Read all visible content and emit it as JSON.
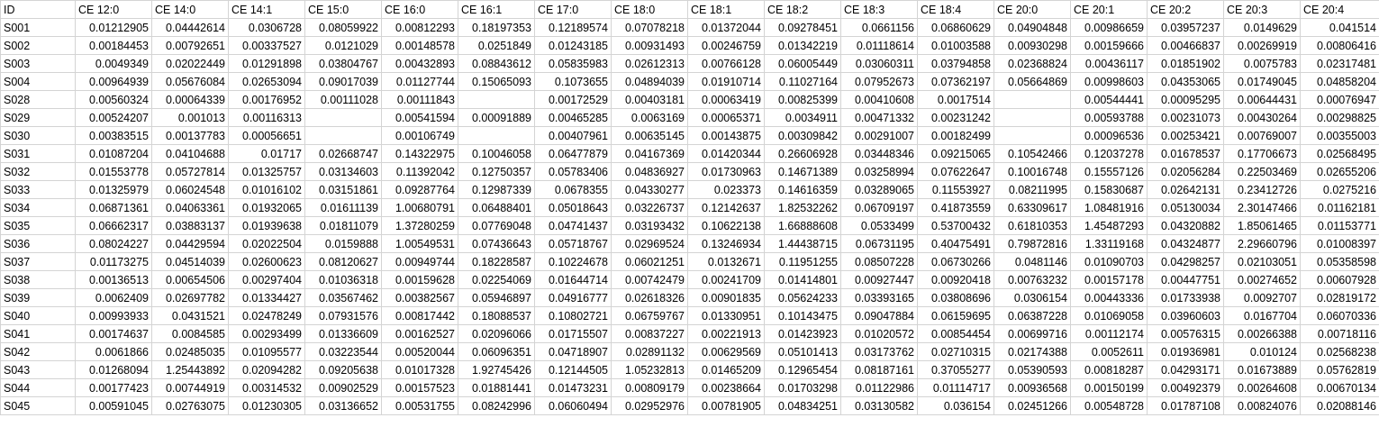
{
  "sheet": {
    "columns": [
      "ID",
      "CE 12:0",
      "CE 14:0",
      "CE 14:1",
      "CE 15:0",
      "CE 16:0",
      "CE 16:1",
      "CE 17:0",
      "CE 18:0",
      "CE 18:1",
      "CE 18:2",
      "CE 18:3",
      "CE 18:4",
      "CE 20:0",
      "CE 20:1",
      "CE 20:2",
      "CE 20:3",
      "CE 20:4"
    ],
    "rows": [
      [
        "S001",
        "0.01212905",
        "0.04442614",
        "0.0306728",
        "0.08059922",
        "0.00812293",
        "0.18197353",
        "0.12189574",
        "0.07078218",
        "0.01372044",
        "0.09278451",
        "0.0661156",
        "0.06860629",
        "0.04904848",
        "0.00986659",
        "0.03957237",
        "0.0149629",
        "0.041514"
      ],
      [
        "S002",
        "0.00184453",
        "0.00792651",
        "0.00337527",
        "0.0121029",
        "0.00148578",
        "0.0251849",
        "0.01243185",
        "0.00931493",
        "0.00246759",
        "0.01342219",
        "0.01118614",
        "0.01003588",
        "0.00930298",
        "0.00159666",
        "0.00466837",
        "0.00269919",
        "0.00806416"
      ],
      [
        "S003",
        "0.0049349",
        "0.02022449",
        "0.01291898",
        "0.03804767",
        "0.00432893",
        "0.08843612",
        "0.05835983",
        "0.02612313",
        "0.00766128",
        "0.06005449",
        "0.03060311",
        "0.03794858",
        "0.02368824",
        "0.00436117",
        "0.01851902",
        "0.0075783",
        "0.02317481"
      ],
      [
        "S004",
        "0.00964939",
        "0.05676084",
        "0.02653094",
        "0.09017039",
        "0.01127744",
        "0.15065093",
        "0.1073655",
        "0.04894039",
        "0.01910714",
        "0.11027164",
        "0.07952673",
        "0.07362197",
        "0.05664869",
        "0.00998603",
        "0.04353065",
        "0.01749045",
        "0.04858204"
      ],
      [
        "S028",
        "0.00560324",
        "0.00064339",
        "0.00176952",
        "0.00111028",
        "0.00111843",
        "",
        "0.00172529",
        "0.00403181",
        "0.00063419",
        "0.00825399",
        "0.00410608",
        "0.0017514",
        "",
        "0.00544441",
        "0.00095295",
        "0.00644431",
        "0.00076947"
      ],
      [
        "S029",
        "0.00524207",
        "0.001013",
        "0.00116313",
        "",
        "0.00541594",
        "0.00091889",
        "0.00465285",
        "0.0063169",
        "0.00065371",
        "0.0034911",
        "0.00471332",
        "0.00231242",
        "",
        "0.00593788",
        "0.00231073",
        "0.00430264",
        "0.00298825"
      ],
      [
        "S030",
        "0.00383515",
        "0.00137783",
        "0.00056651",
        "",
        "0.00106749",
        "",
        "0.00407961",
        "0.00635145",
        "0.00143875",
        "0.00309842",
        "0.00291007",
        "0.00182499",
        "",
        "0.00096536",
        "0.00253421",
        "0.00769007",
        "0.00355003"
      ],
      [
        "S031",
        "0.01087204",
        "0.04104688",
        "0.01717",
        "0.02668747",
        "0.14322975",
        "0.10046058",
        "0.06477879",
        "0.04167369",
        "0.01420344",
        "0.26606928",
        "0.03448346",
        "0.09215065",
        "0.10542466",
        "0.12037278",
        "0.01678537",
        "0.17706673",
        "0.02568495"
      ],
      [
        "S032",
        "0.01553778",
        "0.05727814",
        "0.01325757",
        "0.03134603",
        "0.11392042",
        "0.12750357",
        "0.05783406",
        "0.04836927",
        "0.01730963",
        "0.14671389",
        "0.03258994",
        "0.07622647",
        "0.10016748",
        "0.15557126",
        "0.02056284",
        "0.22503469",
        "0.02655206"
      ],
      [
        "S033",
        "0.01325979",
        "0.06024548",
        "0.01016102",
        "0.03151861",
        "0.09287764",
        "0.12987339",
        "0.0678355",
        "0.04330277",
        "0.023373",
        "0.14616359",
        "0.03289065",
        "0.11553927",
        "0.08211995",
        "0.15830687",
        "0.02642131",
        "0.23412726",
        "0.0275216"
      ],
      [
        "S034",
        "0.06871361",
        "0.04063361",
        "0.01932065",
        "0.01611139",
        "1.00680791",
        "0.06488401",
        "0.05018643",
        "0.03226737",
        "0.12142637",
        "1.82532262",
        "0.06709197",
        "0.41873559",
        "0.63309617",
        "1.08481916",
        "0.05130034",
        "2.30147466",
        "0.01162181"
      ],
      [
        "S035",
        "0.06662317",
        "0.03883137",
        "0.01939638",
        "0.01811079",
        "1.37280259",
        "0.07769048",
        "0.04741437",
        "0.03193432",
        "0.10622138",
        "1.66888608",
        "0.0533499",
        "0.53700432",
        "0.61810353",
        "1.45487293",
        "0.04320882",
        "1.85061465",
        "0.01153771"
      ],
      [
        "S036",
        "0.08024227",
        "0.04429594",
        "0.02022504",
        "0.0159888",
        "1.00549531",
        "0.07436643",
        "0.05718767",
        "0.02969524",
        "0.13246934",
        "1.44438715",
        "0.06731195",
        "0.40475491",
        "0.79872816",
        "1.33119168",
        "0.04324877",
        "2.29660796",
        "0.01008397"
      ],
      [
        "S037",
        "0.01173275",
        "0.04514039",
        "0.02600623",
        "0.08120627",
        "0.00949744",
        "0.18228587",
        "0.10224678",
        "0.06021251",
        "0.0132671",
        "0.11951255",
        "0.08507228",
        "0.06730266",
        "0.0481146",
        "0.01090703",
        "0.04298257",
        "0.02103051",
        "0.05358598"
      ],
      [
        "S038",
        "0.00136513",
        "0.00654506",
        "0.00297404",
        "0.01036318",
        "0.00159628",
        "0.02254069",
        "0.01644714",
        "0.00742479",
        "0.00241709",
        "0.01414801",
        "0.00927447",
        "0.00920418",
        "0.00763232",
        "0.00157178",
        "0.00447751",
        "0.00274652",
        "0.00607928"
      ],
      [
        "S039",
        "0.0062409",
        "0.02697782",
        "0.01334427",
        "0.03567462",
        "0.00382567",
        "0.05946897",
        "0.04916777",
        "0.02618326",
        "0.00901835",
        "0.05624233",
        "0.03393165",
        "0.03808696",
        "0.0306154",
        "0.00443336",
        "0.01733938",
        "0.0092707",
        "0.02819172"
      ],
      [
        "S040",
        "0.00993933",
        "0.0431521",
        "0.02478249",
        "0.07931576",
        "0.00817442",
        "0.18088537",
        "0.10802721",
        "0.06759767",
        "0.01330951",
        "0.10143475",
        "0.09047884",
        "0.06159695",
        "0.06387228",
        "0.01069058",
        "0.03960603",
        "0.0167704",
        "0.06070336"
      ],
      [
        "S041",
        "0.00174637",
        "0.0084585",
        "0.00293499",
        "0.01336609",
        "0.00162527",
        "0.02096066",
        "0.01715507",
        "0.00837227",
        "0.00221913",
        "0.01423923",
        "0.01020572",
        "0.00854454",
        "0.00699716",
        "0.00112174",
        "0.00576315",
        "0.00266388",
        "0.00718116"
      ],
      [
        "S042",
        "0.0061866",
        "0.02485035",
        "0.01095577",
        "0.03223544",
        "0.00520044",
        "0.06096351",
        "0.04718907",
        "0.02891132",
        "0.00629569",
        "0.05101413",
        "0.03173762",
        "0.02710315",
        "0.02174388",
        "0.0052611",
        "0.01936981",
        "0.010124",
        "0.02568238"
      ],
      [
        "S043",
        "0.01268094",
        "1.25443892",
        "0.02094282",
        "0.09205638",
        "0.01017328",
        "1.92745426",
        "0.12144505",
        "1.05232813",
        "0.01465209",
        "0.12965454",
        "0.08187161",
        "0.37055277",
        "0.05390593",
        "0.00818287",
        "0.04293171",
        "0.01673889",
        "0.05762819"
      ],
      [
        "S044",
        "0.00177423",
        "0.00744919",
        "0.00314532",
        "0.00902529",
        "0.00157523",
        "0.01881441",
        "0.01473231",
        "0.00809179",
        "0.00238664",
        "0.01703298",
        "0.01122986",
        "0.01114717",
        "0.00936568",
        "0.00150199",
        "0.00492379",
        "0.00264608",
        "0.00670134"
      ],
      [
        "S045",
        "0.00591045",
        "0.02763075",
        "0.01230305",
        "0.03136652",
        "0.00531755",
        "0.08242996",
        "0.06060494",
        "0.02952976",
        "0.00781905",
        "0.04834251",
        "0.03130582",
        "0.036154",
        "0.02451266",
        "0.00548728",
        "0.01787108",
        "0.00824076",
        "0.02088146"
      ]
    ]
  }
}
